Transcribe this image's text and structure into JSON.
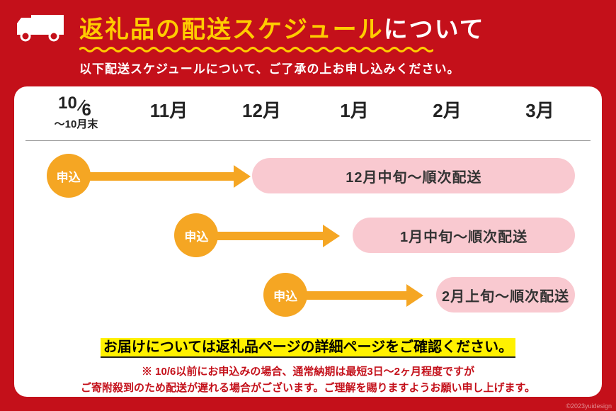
{
  "colors": {
    "bg_red": "#c4101a",
    "accent_yellow": "#ffcc00",
    "badge_orange": "#f5a623",
    "pill_pink": "#f9c9d0",
    "highlight_yellow": "#fff100",
    "text_dark": "#222222",
    "white": "#ffffff"
  },
  "title_part1": "返礼品の配送スケジュール",
  "title_part2": "について",
  "subtitle": "以下配送スケジュールについて、ご了承の上お申し込みください。",
  "months": {
    "first_num": "10",
    "first_den": "6",
    "first_sub": "〜10月末",
    "m2": "11月",
    "m3": "12月",
    "m4": "1月",
    "m5": "2月",
    "m6": "3月"
  },
  "rows": [
    {
      "badge": "申込",
      "badge_left_pct": 3,
      "arrow_left_pct": 9,
      "arrow_right_pct": 59,
      "pill": "12月中旬〜順次配送",
      "pill_left_pct": 40,
      "pill_right_pct": 2
    },
    {
      "badge": "申込",
      "badge_left_pct": 26,
      "arrow_left_pct": 32,
      "arrow_right_pct": 43,
      "pill": "1月中旬〜順次配送",
      "pill_left_pct": 58,
      "pill_right_pct": 2
    },
    {
      "badge": "申込",
      "badge_left_pct": 42,
      "arrow_left_pct": 48,
      "arrow_right_pct": 28,
      "pill": "2月上旬〜順次配送",
      "pill_left_pct": 73,
      "pill_right_pct": 2
    }
  ],
  "footnote1": "お届けについては返礼品ページの詳細ページをご確認ください。",
  "footnote2_line1": "※ 10/6以前にお申込みの場合、通常納期は最短3日〜2ヶ月程度ですが",
  "footnote2_line2": "ご寄附殺到のため配送が遅れる場合がございます。ご理解を賜りますようお願い申し上げます。",
  "copyright": "©2023yuidesign"
}
